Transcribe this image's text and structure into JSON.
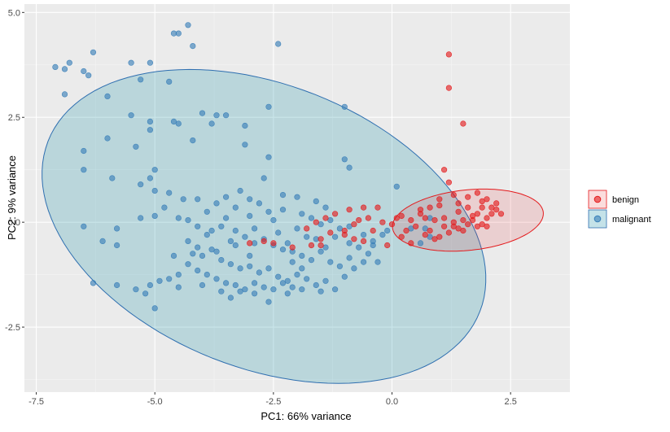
{
  "chart_data": {
    "type": "scatter",
    "xlabel": "PC1: 66% variance",
    "ylabel": "PC2: 9% variance",
    "xlim": [
      -7.75,
      3.75
    ],
    "ylim": [
      -4.05,
      5.2
    ],
    "x_ticks": [
      -7.5,
      -5.0,
      -2.5,
      0.0,
      2.5
    ],
    "x_tick_labels": [
      "-7.5",
      "-5.0",
      "-2.5",
      "0.0",
      "2.5"
    ],
    "y_ticks": [
      -2.5,
      0.0,
      2.5,
      5.0
    ],
    "y_tick_labels": [
      "-2.5",
      "0.0",
      "2.5",
      "5.0"
    ],
    "grid": true,
    "legend_position": "right",
    "series": [
      {
        "name": "benign",
        "color": "#e41a1c",
        "ellipse": {
          "cx": 1.6,
          "cy": 0.05,
          "rx": 1.6,
          "ry": 0.72,
          "rotation_deg": 7
        },
        "points": [
          [
            1.2,
            4.0
          ],
          [
            1.2,
            3.2
          ],
          [
            1.5,
            2.35
          ],
          [
            1.1,
            1.25
          ],
          [
            1.2,
            0.95
          ],
          [
            1.0,
            0.55
          ],
          [
            1.3,
            0.65
          ],
          [
            1.6,
            0.6
          ],
          [
            1.8,
            0.7
          ],
          [
            2.0,
            0.55
          ],
          [
            1.9,
            0.35
          ],
          [
            2.2,
            0.3
          ],
          [
            2.3,
            0.2
          ],
          [
            2.1,
            0.2
          ],
          [
            1.0,
            0.4
          ],
          [
            0.8,
            0.35
          ],
          [
            0.6,
            0.3
          ],
          [
            0.7,
            0.1
          ],
          [
            0.9,
            0.05
          ],
          [
            1.1,
            -0.1
          ],
          [
            1.3,
            0.0
          ],
          [
            1.5,
            0.05
          ],
          [
            1.7,
            0.15
          ],
          [
            1.4,
            0.25
          ],
          [
            1.6,
            0.35
          ],
          [
            1.8,
            0.2
          ],
          [
            2.0,
            0.1
          ],
          [
            1.9,
            -0.05
          ],
          [
            1.5,
            -0.2
          ],
          [
            1.2,
            -0.25
          ],
          [
            1.0,
            -0.35
          ],
          [
            0.9,
            -0.4
          ],
          [
            1.3,
            -0.1
          ],
          [
            1.7,
            0.05
          ],
          [
            2.1,
            0.35
          ],
          [
            0.5,
            -0.1
          ],
          [
            0.4,
            0.05
          ],
          [
            0.7,
            -0.3
          ],
          [
            0.8,
            -0.2
          ],
          [
            1.1,
            0.1
          ],
          [
            1.4,
            0.45
          ],
          [
            1.9,
            0.5
          ],
          [
            2.2,
            0.45
          ],
          [
            0.6,
            0.2
          ],
          [
            0.3,
            -0.2
          ],
          [
            0.1,
            0.1
          ],
          [
            0.2,
            0.15
          ],
          [
            0.0,
            -0.05
          ],
          [
            -0.2,
            0.0
          ],
          [
            -0.5,
            0.1
          ],
          [
            -0.7,
            0.05
          ],
          [
            -0.8,
            -0.05
          ],
          [
            -1.0,
            -0.2
          ],
          [
            -1.3,
            -0.25
          ],
          [
            -1.5,
            -0.4
          ],
          [
            -1.7,
            -0.55
          ],
          [
            -2.1,
            -0.6
          ],
          [
            -2.5,
            -0.5
          ],
          [
            -2.7,
            -0.45
          ],
          [
            -3.0,
            -0.5
          ],
          [
            -0.3,
            0.35
          ],
          [
            -0.6,
            0.35
          ],
          [
            -0.9,
            0.3
          ],
          [
            -1.2,
            0.2
          ],
          [
            -1.4,
            0.1
          ],
          [
            -1.6,
            0.0
          ],
          [
            -1.8,
            -0.15
          ],
          [
            -1.5,
            -0.55
          ],
          [
            -1.0,
            -0.3
          ],
          [
            -0.8,
            -0.4
          ],
          [
            -0.6,
            -0.45
          ],
          [
            -0.4,
            -0.2
          ],
          [
            -0.1,
            -0.55
          ],
          [
            0.2,
            -0.35
          ],
          [
            0.4,
            -0.5
          ],
          [
            1.6,
            -0.05
          ],
          [
            1.8,
            -0.1
          ],
          [
            2.0,
            -0.1
          ],
          [
            1.4,
            -0.15
          ]
        ]
      },
      {
        "name": "malignant",
        "color": "#377eb8",
        "ellipse": {
          "cx": -2.7,
          "cy": -0.1,
          "rx": 5.0,
          "ry": 3.3,
          "rotation_deg": -28
        },
        "points": [
          [
            -4.3,
            4.7
          ],
          [
            -4.5,
            4.5
          ],
          [
            -4.6,
            4.5
          ],
          [
            -4.2,
            4.2
          ],
          [
            -7.1,
            3.7
          ],
          [
            -6.9,
            3.65
          ],
          [
            -6.8,
            3.8
          ],
          [
            -6.5,
            3.6
          ],
          [
            -6.4,
            3.5
          ],
          [
            -6.3,
            4.05
          ],
          [
            -5.5,
            3.8
          ],
          [
            -5.1,
            3.8
          ],
          [
            -2.4,
            4.25
          ],
          [
            -5.3,
            3.4
          ],
          [
            -4.7,
            3.35
          ],
          [
            -6.9,
            3.05
          ],
          [
            -6.0,
            3.0
          ],
          [
            -1.0,
            2.75
          ],
          [
            -2.6,
            2.75
          ],
          [
            -4.0,
            2.6
          ],
          [
            -3.7,
            2.55
          ],
          [
            -3.5,
            2.55
          ],
          [
            -5.5,
            2.55
          ],
          [
            -4.6,
            2.4
          ],
          [
            -4.5,
            2.35
          ],
          [
            -3.8,
            2.35
          ],
          [
            -3.1,
            2.3
          ],
          [
            -5.1,
            2.4
          ],
          [
            -5.1,
            2.2
          ],
          [
            -6.0,
            2.0
          ],
          [
            -4.2,
            1.95
          ],
          [
            -6.5,
            1.7
          ],
          [
            -5.4,
            1.8
          ],
          [
            -3.1,
            1.85
          ],
          [
            -2.6,
            1.55
          ],
          [
            -1.0,
            1.5
          ],
          [
            -0.9,
            1.3
          ],
          [
            -6.5,
            1.25
          ],
          [
            -5.0,
            1.25
          ],
          [
            -5.9,
            1.05
          ],
          [
            -5.1,
            1.05
          ],
          [
            -2.7,
            1.05
          ],
          [
            -5.3,
            0.9
          ],
          [
            -5.0,
            0.75
          ],
          [
            -4.7,
            0.7
          ],
          [
            -4.4,
            0.55
          ],
          [
            -4.1,
            0.55
          ],
          [
            -3.7,
            0.45
          ],
          [
            -3.5,
            0.6
          ],
          [
            -3.2,
            0.75
          ],
          [
            -3.0,
            0.55
          ],
          [
            -2.8,
            0.45
          ],
          [
            -2.3,
            0.65
          ],
          [
            -2.0,
            0.6
          ],
          [
            -1.6,
            0.5
          ],
          [
            -1.4,
            0.35
          ],
          [
            -3.9,
            0.25
          ],
          [
            -4.8,
            0.35
          ],
          [
            -3.3,
            0.35
          ],
          [
            -3.0,
            0.15
          ],
          [
            -2.6,
            0.25
          ],
          [
            -2.3,
            0.3
          ],
          [
            -1.9,
            0.2
          ],
          [
            -1.7,
            0.1
          ],
          [
            -1.5,
            -0.05
          ],
          [
            -1.3,
            0.05
          ],
          [
            -1.1,
            -0.15
          ],
          [
            -0.9,
            -0.1
          ],
          [
            -0.6,
            -0.3
          ],
          [
            -0.4,
            -0.45
          ],
          [
            -0.2,
            -0.3
          ],
          [
            0.1,
            0.85
          ],
          [
            0.4,
            -0.15
          ],
          [
            0.7,
            -0.15
          ],
          [
            0.8,
            0.1
          ],
          [
            -5.3,
            0.1
          ],
          [
            -5.0,
            0.15
          ],
          [
            -4.5,
            0.1
          ],
          [
            -4.3,
            0.05
          ],
          [
            -4.1,
            -0.1
          ],
          [
            -3.9,
            -0.3
          ],
          [
            -3.6,
            -0.1
          ],
          [
            -3.3,
            -0.2
          ],
          [
            -3.1,
            -0.35
          ],
          [
            -2.9,
            -0.5
          ],
          [
            -2.7,
            -0.4
          ],
          [
            -2.5,
            -0.55
          ],
          [
            -2.3,
            -0.65
          ],
          [
            -2.1,
            -0.7
          ],
          [
            -1.9,
            -0.8
          ],
          [
            -1.7,
            -0.9
          ],
          [
            -1.5,
            -0.7
          ],
          [
            -1.3,
            -0.95
          ],
          [
            -1.1,
            -1.05
          ],
          [
            -0.9,
            -0.85
          ],
          [
            -0.7,
            -0.6
          ],
          [
            -0.5,
            -0.75
          ],
          [
            -0.3,
            -0.95
          ],
          [
            -6.5,
            -0.1
          ],
          [
            -5.8,
            -0.15
          ],
          [
            -6.1,
            -0.45
          ],
          [
            -5.8,
            -0.55
          ],
          [
            -4.3,
            -0.45
          ],
          [
            -4.1,
            -0.6
          ],
          [
            -4.0,
            -0.8
          ],
          [
            -3.8,
            -0.65
          ],
          [
            -3.6,
            -0.9
          ],
          [
            -3.4,
            -1.0
          ],
          [
            -3.2,
            -1.1
          ],
          [
            -3.0,
            -1.05
          ],
          [
            -2.8,
            -1.2
          ],
          [
            -2.6,
            -1.1
          ],
          [
            -2.4,
            -1.3
          ],
          [
            -2.2,
            -1.4
          ],
          [
            -2.0,
            -1.25
          ],
          [
            -1.8,
            -1.35
          ],
          [
            -1.6,
            -1.5
          ],
          [
            -1.4,
            -1.4
          ],
          [
            -1.2,
            -1.6
          ],
          [
            -1.0,
            -1.3
          ],
          [
            -0.8,
            -1.1
          ],
          [
            -4.3,
            -1.0
          ],
          [
            -4.1,
            -1.15
          ],
          [
            -3.9,
            -1.25
          ],
          [
            -3.7,
            -1.35
          ],
          [
            -3.5,
            -1.45
          ],
          [
            -3.3,
            -1.5
          ],
          [
            -3.1,
            -1.6
          ],
          [
            -2.9,
            -1.45
          ],
          [
            -2.7,
            -1.55
          ],
          [
            -2.5,
            -1.6
          ],
          [
            -2.3,
            -1.45
          ],
          [
            -2.1,
            -1.55
          ],
          [
            -4.5,
            -1.25
          ],
          [
            -4.7,
            -1.35
          ],
          [
            -4.9,
            -1.4
          ],
          [
            -5.1,
            -1.5
          ],
          [
            -5.4,
            -1.6
          ],
          [
            -5.8,
            -1.5
          ],
          [
            -4.5,
            -1.55
          ],
          [
            -4.0,
            -1.5
          ],
          [
            -3.6,
            -1.65
          ],
          [
            -3.2,
            -1.65
          ],
          [
            -2.6,
            -1.9
          ],
          [
            -2.2,
            -1.7
          ],
          [
            -1.9,
            -1.6
          ],
          [
            -1.5,
            -1.65
          ],
          [
            -6.3,
            -1.45
          ],
          [
            -5.2,
            -1.7
          ],
          [
            -5.0,
            -2.05
          ],
          [
            -3.4,
            -1.8
          ],
          [
            -2.9,
            -1.7
          ],
          [
            -3.8,
            -0.2
          ],
          [
            -3.5,
            0.1
          ],
          [
            -2.5,
            0.05
          ],
          [
            -2.0,
            -0.15
          ],
          [
            -1.8,
            -0.35
          ],
          [
            -1.6,
            -0.4
          ],
          [
            -2.4,
            -0.25
          ],
          [
            -2.9,
            -0.15
          ],
          [
            -3.3,
            -0.55
          ],
          [
            -3.7,
            -0.7
          ],
          [
            -2.1,
            -0.95
          ],
          [
            -1.9,
            -1.1
          ],
          [
            -0.9,
            -0.5
          ],
          [
            -0.6,
            -0.95
          ],
          [
            -0.4,
            -0.55
          ],
          [
            -0.1,
            -0.2
          ],
          [
            0.6,
            -0.5
          ],
          [
            0.8,
            -0.35
          ],
          [
            -2.2,
            -0.5
          ],
          [
            -1.4,
            -0.6
          ],
          [
            -1.2,
            -0.35
          ],
          [
            -3.0,
            -0.8
          ],
          [
            -3.4,
            -0.45
          ],
          [
            -4.2,
            -0.75
          ],
          [
            -4.6,
            -0.8
          ]
        ]
      }
    ]
  }
}
